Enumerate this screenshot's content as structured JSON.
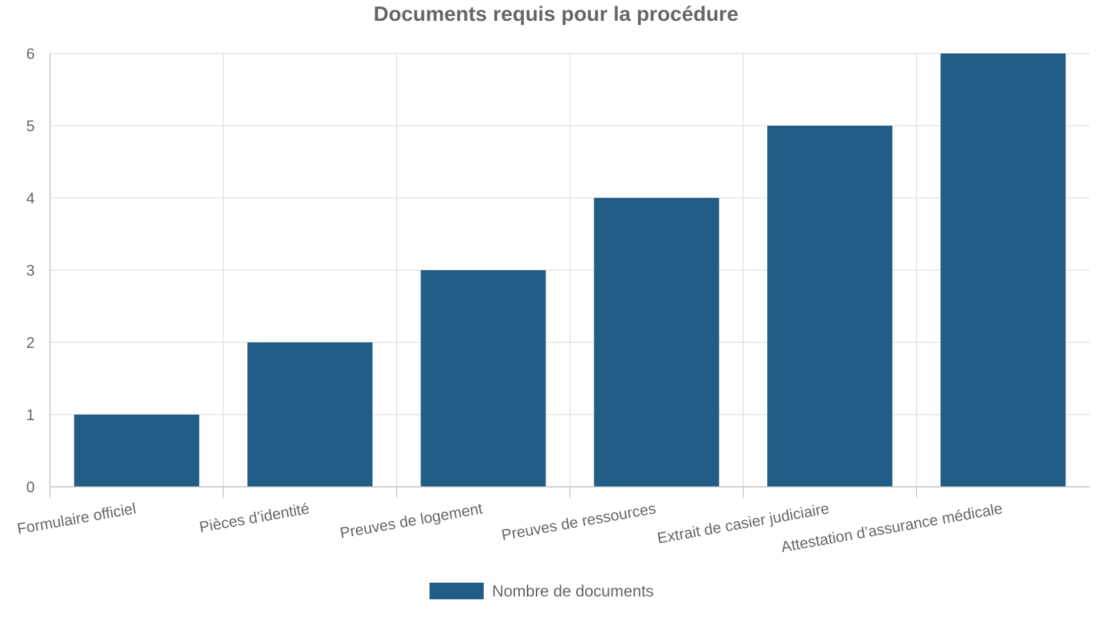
{
  "chart_data": {
    "type": "bar",
    "title": "Documents requis pour la procédure",
    "categories": [
      "Formulaire officiel",
      "Pièces d’identité",
      "Preuves de logement",
      "Preuves de ressources",
      "Extrait de casier judiciaire",
      "Attestation d’assurance médicale"
    ],
    "series": [
      {
        "name": "Nombre de documents",
        "values": [
          1,
          2,
          3,
          4,
          5,
          6
        ],
        "color": "#215d87"
      }
    ],
    "xlabel": "",
    "ylabel": "",
    "ylim": [
      0,
      6
    ],
    "yticks": [
      "0",
      "1",
      "2",
      "3",
      "4",
      "5",
      "6"
    ],
    "grid": true,
    "legend_position": "bottom-center"
  }
}
